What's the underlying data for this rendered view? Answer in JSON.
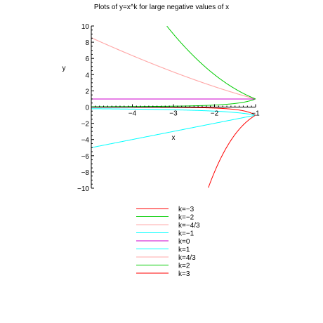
{
  "chart_data": {
    "type": "line",
    "title": "Plots of y=x^k for large negative values of x",
    "xlabel": "x",
    "ylabel": "y",
    "xlim": [
      -5,
      -1
    ],
    "ylim": [
      -10,
      10
    ],
    "x_ticks": [
      {
        "value": -4,
        "label": "−4"
      },
      {
        "value": -3,
        "label": "−3"
      },
      {
        "value": -2,
        "label": "−2"
      },
      {
        "value": -1,
        "label": "−1"
      }
    ],
    "y_ticks": [
      {
        "value": 10,
        "label": "10"
      },
      {
        "value": 8,
        "label": "8"
      },
      {
        "value": 6,
        "label": "6"
      },
      {
        "value": 4,
        "label": "4"
      },
      {
        "value": 2,
        "label": "2"
      },
      {
        "value": 0,
        "label": "0"
      },
      {
        "value": -2,
        "label": "−2"
      },
      {
        "value": -4,
        "label": "−4"
      },
      {
        "value": -6,
        "label": "−6"
      },
      {
        "value": -8,
        "label": "−8"
      },
      {
        "value": -10,
        "label": "−10"
      }
    ],
    "legend_position": "bottom",
    "series": [
      {
        "name": "k=−3",
        "k": -3,
        "color": "#ff0000"
      },
      {
        "name": "k=−2",
        "k": -2,
        "color": "#00cc00"
      },
      {
        "name": "k=−4/3",
        "k": -1.3333,
        "color": "#ffaaaa"
      },
      {
        "name": "k=−1",
        "k": -1,
        "color": "#00ffff"
      },
      {
        "name": "k=0",
        "k": 0,
        "color": "#cc00cc"
      },
      {
        "name": "k=1",
        "k": 1,
        "color": "#00ffff"
      },
      {
        "name": "k=4/3",
        "k": 1.3333,
        "color": "#ffaaaa"
      },
      {
        "name": "k=2",
        "k": 2,
        "color": "#00cc00"
      },
      {
        "name": "k=3",
        "k": 3,
        "color": "#ff0000"
      }
    ]
  }
}
